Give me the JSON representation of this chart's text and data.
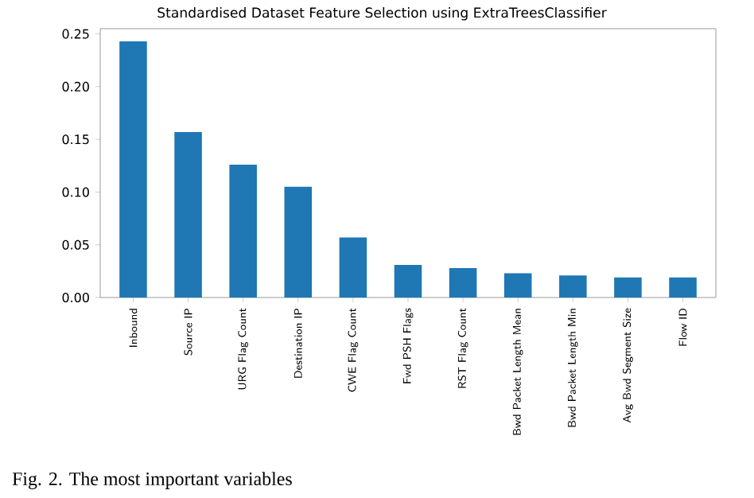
{
  "chart_data": {
    "type": "bar",
    "title": "Standardised Dataset Feature Selection using ExtraTreesClassifier",
    "categories": [
      "Inbound",
      "Source IP",
      "URG Flag Count",
      "Destination IP",
      "CWE Flag Count",
      "Fwd PSH Flags",
      "RST Flag Count",
      "Bwd Packet Length Mean",
      "Bwd Packet Length Min",
      "Avg Bwd Segment Size",
      "Flow ID"
    ],
    "values": [
      0.243,
      0.157,
      0.126,
      0.105,
      0.057,
      0.031,
      0.028,
      0.023,
      0.021,
      0.019,
      0.019
    ],
    "color": "#1f77b4",
    "ylim": [
      0,
      0.255
    ],
    "yticks": [
      {
        "value": 0,
        "label": "0.00"
      },
      0.05,
      {
        "value": 0.1,
        "label": "0.10"
      },
      0.15,
      {
        "value": 0.2,
        "label": "0.20"
      },
      0.25
    ],
    "annotations": [
      "Fig. 2. The most important variables"
    ]
  }
}
